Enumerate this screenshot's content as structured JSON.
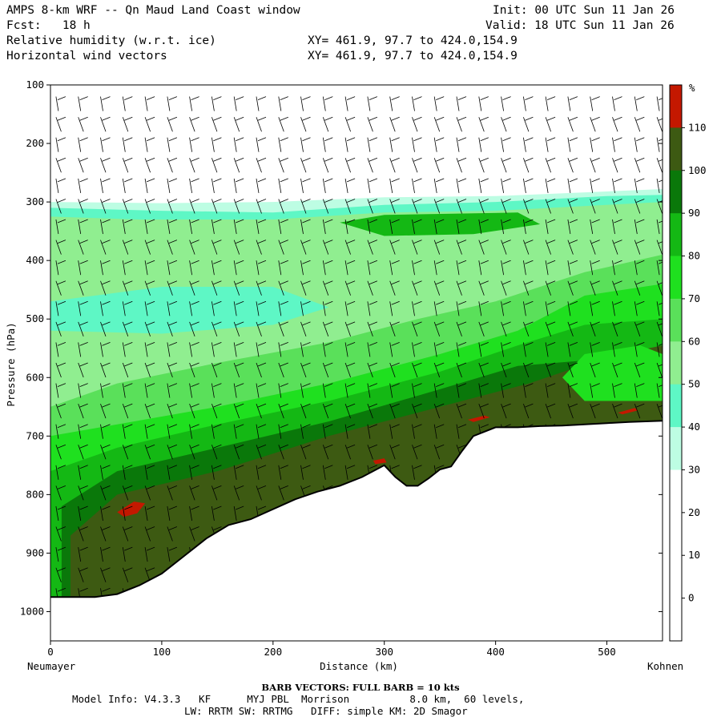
{
  "header": {
    "title_left": "AMPS 8-km WRF -- Qn Maud Land Coast window",
    "fcst": "Fcst:   18 h",
    "init": "Init: 00 UTC Sun 11 Jan 26",
    "valid": "Valid: 18 UTC Sun 11 Jan 26",
    "field1": "Relative humidity (w.r.t. ice)",
    "field1_xy": "XY= 461.9, 97.7 to 424.0,154.9",
    "field2": "Horizontal wind vectors",
    "field2_xy": "XY= 461.9, 97.7 to 424.0,154.9"
  },
  "chart_data": {
    "type": "heatmap",
    "description_fields": [
      "Relative humidity (w.r.t. ice)",
      "Horizontal wind vectors"
    ],
    "xlabel": "Distance (km)",
    "ylabel": "Pressure (hPa)",
    "xlim": [
      0,
      550
    ],
    "ylim": [
      1050,
      100
    ],
    "x_ticks": [
      0,
      100,
      200,
      300,
      400,
      500
    ],
    "y_ticks": [
      100,
      200,
      300,
      400,
      500,
      600,
      700,
      800,
      900,
      1000
    ],
    "x_endpoint_labels": [
      "Neumayer",
      "Kohnen"
    ],
    "colorbar": {
      "unit": "%",
      "levels": [
        0,
        10,
        20,
        30,
        40,
        50,
        60,
        70,
        80,
        90,
        100,
        110
      ],
      "colors": [
        "#ffffff",
        "#ffffff",
        "#ffffff",
        "#bdfde3",
        "#5ef7c5",
        "#90ee90",
        "#5ae05a",
        "#1fe01f",
        "#14b814",
        "#0a780a",
        "#3d5a12",
        "#c41800"
      ]
    },
    "terrain_surface_hpa": {
      "x": [
        0,
        20,
        40,
        60,
        80,
        100,
        120,
        140,
        160,
        180,
        200,
        220,
        240,
        260,
        280,
        300,
        310,
        320,
        330,
        340,
        350,
        360,
        370,
        380,
        400,
        420,
        440,
        460,
        480,
        500,
        520,
        550
      ],
      "p": [
        975,
        975,
        975,
        970,
        955,
        935,
        905,
        875,
        852,
        842,
        825,
        808,
        795,
        785,
        770,
        750,
        770,
        785,
        785,
        772,
        757,
        752,
        725,
        700,
        685,
        685,
        683,
        682,
        680,
        678,
        676,
        674
      ]
    },
    "rh_regions_pct": [
      {
        "region": "upper troposphere above ~300 hPa",
        "value": "< 30"
      },
      {
        "region": "band ~350-500 hPa west of 300 km",
        "value": "40-60"
      },
      {
        "region": "band ~320-350 hPa near 280-380 km",
        "value": "90-100"
      },
      {
        "region": "lower troposphere 600-900 hPa",
        "value": "90-100"
      },
      {
        "region": "small patches near surface (~75 km 820 hPa; ~295 km 740 hPa; ~390 km 670 hPa; ~520 km 655 hPa)",
        "value": "> 110"
      }
    ],
    "wind_barbs_note": "BARB VECTORS:  FULL BARB = 10 kts"
  },
  "footer": {
    "barb_note": "BARB VECTORS:  FULL BARB = 10 kts",
    "model_info": "Model Info: V4.3.3   KF      MYJ PBL  Morrison          8.0 km,  60 levels,",
    "model_info2": "LW: RRTM SW: RRTMG   DIFF: simple KM: 2D Smagor"
  }
}
